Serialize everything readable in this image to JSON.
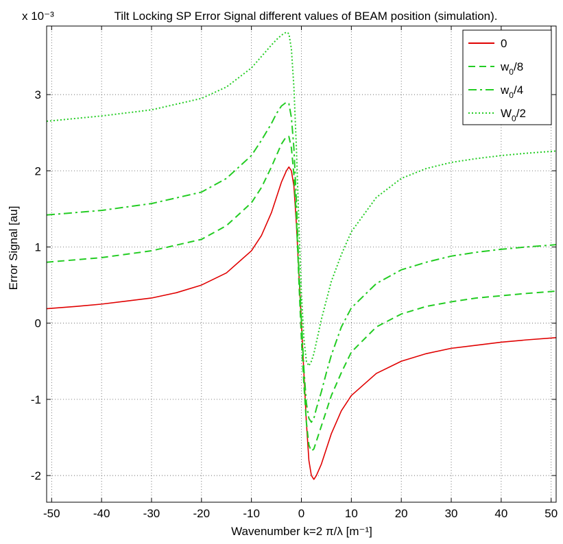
{
  "chart_data": {
    "type": "line",
    "title": "Tilt Locking SP Error Signal different values of BEAM position (simulation).",
    "xlabel": "Wavenumber k=2 π/λ [m⁻¹]",
    "ylabel": "Error Signal [au]",
    "y_exponent_label": "x 10⁻³",
    "xlim": [
      -51,
      51
    ],
    "ylim": [
      -2.35,
      3.9
    ],
    "xticks": [
      -50,
      -40,
      -30,
      -20,
      -10,
      0,
      10,
      20,
      30,
      40,
      50
    ],
    "yticks": [
      -2,
      -1,
      0,
      1,
      2,
      3
    ],
    "grid": true,
    "legend_position": "top-right",
    "series": [
      {
        "name": "0",
        "color": "#e00000",
        "style": "solid",
        "points": [
          [
            -51,
            0.19
          ],
          [
            -45,
            0.22
          ],
          [
            -40,
            0.25
          ],
          [
            -35,
            0.29
          ],
          [
            -30,
            0.33
          ],
          [
            -25,
            0.4
          ],
          [
            -20,
            0.5
          ],
          [
            -15,
            0.66
          ],
          [
            -10,
            0.95
          ],
          [
            -8,
            1.15
          ],
          [
            -6,
            1.45
          ],
          [
            -5,
            1.65
          ],
          [
            -4,
            1.85
          ],
          [
            -3,
            2.0
          ],
          [
            -2.5,
            2.05
          ],
          [
            -2,
            2.0
          ],
          [
            -1.5,
            1.8
          ],
          [
            -1,
            1.3
          ],
          [
            -0.5,
            0.65
          ],
          [
            0,
            0.0
          ],
          [
            0.5,
            -0.65
          ],
          [
            1,
            -1.3
          ],
          [
            1.5,
            -1.8
          ],
          [
            2,
            -2.0
          ],
          [
            2.5,
            -2.05
          ],
          [
            3,
            -2.0
          ],
          [
            4,
            -1.85
          ],
          [
            5,
            -1.65
          ],
          [
            6,
            -1.45
          ],
          [
            8,
            -1.15
          ],
          [
            10,
            -0.95
          ],
          [
            15,
            -0.66
          ],
          [
            20,
            -0.5
          ],
          [
            25,
            -0.4
          ],
          [
            30,
            -0.33
          ],
          [
            35,
            -0.29
          ],
          [
            40,
            -0.25
          ],
          [
            45,
            -0.22
          ],
          [
            51,
            -0.19
          ]
        ]
      },
      {
        "name": "w0/8",
        "color": "#22cc22",
        "style": "dashed",
        "points": [
          [
            -51,
            0.8
          ],
          [
            -40,
            0.86
          ],
          [
            -30,
            0.95
          ],
          [
            -20,
            1.1
          ],
          [
            -15,
            1.28
          ],
          [
            -10,
            1.58
          ],
          [
            -8,
            1.78
          ],
          [
            -6,
            2.05
          ],
          [
            -5,
            2.2
          ],
          [
            -4,
            2.35
          ],
          [
            -3,
            2.45
          ],
          [
            -2.5,
            2.45
          ],
          [
            -2,
            2.3
          ],
          [
            -1.5,
            1.95
          ],
          [
            -1,
            1.4
          ],
          [
            -0.5,
            0.55
          ],
          [
            0,
            -0.2
          ],
          [
            0.5,
            -0.8
          ],
          [
            1,
            -1.3
          ],
          [
            1.5,
            -1.6
          ],
          [
            2,
            -1.68
          ],
          [
            2.5,
            -1.65
          ],
          [
            3,
            -1.55
          ],
          [
            4,
            -1.35
          ],
          [
            5,
            -1.15
          ],
          [
            6,
            -0.95
          ],
          [
            8,
            -0.65
          ],
          [
            10,
            -0.38
          ],
          [
            15,
            -0.05
          ],
          [
            20,
            0.12
          ],
          [
            25,
            0.22
          ],
          [
            30,
            0.28
          ],
          [
            35,
            0.33
          ],
          [
            40,
            0.36
          ],
          [
            45,
            0.39
          ],
          [
            51,
            0.42
          ]
        ]
      },
      {
        "name": "w0/4",
        "color": "#22cc22",
        "style": "dashdot",
        "points": [
          [
            -51,
            1.42
          ],
          [
            -40,
            1.48
          ],
          [
            -30,
            1.57
          ],
          [
            -20,
            1.72
          ],
          [
            -15,
            1.9
          ],
          [
            -10,
            2.2
          ],
          [
            -8,
            2.4
          ],
          [
            -6,
            2.62
          ],
          [
            -5,
            2.75
          ],
          [
            -4,
            2.85
          ],
          [
            -3,
            2.9
          ],
          [
            -2.5,
            2.88
          ],
          [
            -2,
            2.7
          ],
          [
            -1.5,
            2.3
          ],
          [
            -1,
            1.6
          ],
          [
            -0.5,
            0.7
          ],
          [
            0,
            0.05
          ],
          [
            0.5,
            -0.6
          ],
          [
            1,
            -1.05
          ],
          [
            1.5,
            -1.25
          ],
          [
            2,
            -1.3
          ],
          [
            2.5,
            -1.25
          ],
          [
            3,
            -1.12
          ],
          [
            4,
            -0.9
          ],
          [
            5,
            -0.65
          ],
          [
            6,
            -0.42
          ],
          [
            8,
            -0.05
          ],
          [
            10,
            0.2
          ],
          [
            15,
            0.52
          ],
          [
            20,
            0.7
          ],
          [
            25,
            0.8
          ],
          [
            30,
            0.88
          ],
          [
            35,
            0.93
          ],
          [
            40,
            0.97
          ],
          [
            45,
            1.0
          ],
          [
            51,
            1.03
          ]
        ]
      },
      {
        "name": "W0/2",
        "color": "#22cc22",
        "style": "dotted",
        "points": [
          [
            -51,
            2.65
          ],
          [
            -40,
            2.72
          ],
          [
            -30,
            2.8
          ],
          [
            -20,
            2.95
          ],
          [
            -15,
            3.1
          ],
          [
            -10,
            3.35
          ],
          [
            -8,
            3.5
          ],
          [
            -6,
            3.65
          ],
          [
            -5,
            3.72
          ],
          [
            -4,
            3.78
          ],
          [
            -3,
            3.82
          ],
          [
            -2.5,
            3.8
          ],
          [
            -2,
            3.6
          ],
          [
            -1.5,
            3.1
          ],
          [
            -1,
            2.3
          ],
          [
            -0.5,
            1.3
          ],
          [
            0,
            0.4
          ],
          [
            0.5,
            -0.2
          ],
          [
            1,
            -0.5
          ],
          [
            1.5,
            -0.56
          ],
          [
            2,
            -0.5
          ],
          [
            2.5,
            -0.4
          ],
          [
            3,
            -0.25
          ],
          [
            4,
            0.05
          ],
          [
            5,
            0.3
          ],
          [
            6,
            0.55
          ],
          [
            8,
            0.9
          ],
          [
            10,
            1.2
          ],
          [
            15,
            1.65
          ],
          [
            20,
            1.9
          ],
          [
            25,
            2.03
          ],
          [
            30,
            2.11
          ],
          [
            35,
            2.16
          ],
          [
            40,
            2.2
          ],
          [
            45,
            2.23
          ],
          [
            51,
            2.26
          ]
        ]
      }
    ]
  }
}
